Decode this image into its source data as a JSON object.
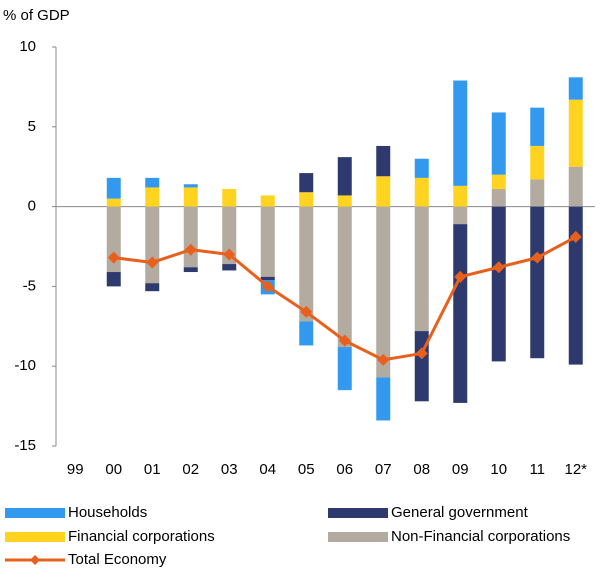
{
  "chart_data": {
    "type": "stacked-bar-line",
    "y_label": "% of GDP",
    "categories": [
      "99",
      "00",
      "01",
      "02",
      "03",
      "04",
      "05",
      "06",
      "07",
      "08",
      "09",
      "10",
      "11",
      "12*"
    ],
    "series": [
      {
        "name": "Households",
        "color": "#3399ee",
        "type": "bar",
        "values": [
          null,
          1.3,
          0.6,
          0.2,
          0,
          -0.9,
          -1.5,
          -2.7,
          -2.7,
          1.2,
          6.6,
          3.9,
          2.4,
          1.4
        ]
      },
      {
        "name": "General government",
        "color": "#2e3a6e",
        "type": "bar",
        "values": [
          null,
          -0.9,
          -0.5,
          -0.3,
          -0.4,
          -0.2,
          1.2,
          2.4,
          1.9,
          -4.4,
          -11.2,
          -9.7,
          -9.5,
          -9.9
        ]
      },
      {
        "name": "Financial corporations",
        "color": "#ffd320",
        "type": "bar",
        "values": [
          null,
          0.5,
          1.2,
          1.2,
          1.1,
          0.7,
          0.9,
          0.7,
          1.9,
          1.8,
          1.3,
          0.9,
          2.1,
          4.2
        ]
      },
      {
        "name": "Non-Financial corporations",
        "color": "#b3aaa0",
        "type": "bar",
        "values": [
          null,
          -4.1,
          -4.8,
          -3.8,
          -3.6,
          -4.4,
          -7.2,
          -8.8,
          -10.7,
          -7.8,
          -1.1,
          1.1,
          1.7,
          2.5
        ]
      },
      {
        "name": "Total Economy",
        "color": "#e8601c",
        "type": "line",
        "values": [
          null,
          -3.2,
          -3.5,
          -2.7,
          -3.0,
          -5.0,
          -6.6,
          -8.4,
          -9.6,
          -9.2,
          -4.4,
          -3.8,
          -3.2,
          -1.9
        ]
      }
    ],
    "ylim": [
      -15,
      10
    ],
    "yticks": [
      -15,
      -10,
      -5,
      0,
      5,
      10
    ]
  }
}
